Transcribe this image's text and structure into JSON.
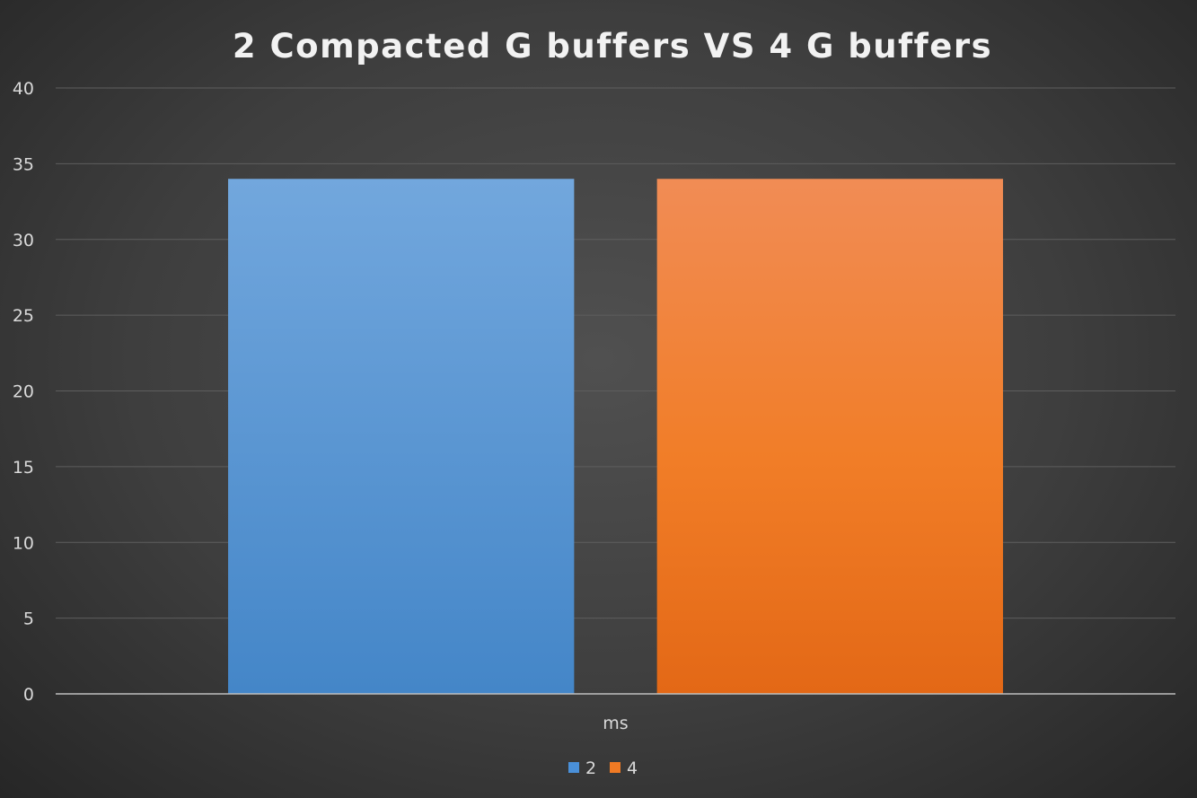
{
  "chart_data": {
    "type": "bar",
    "title": "2 Compacted G buffers VS 4 G buffers",
    "categories": [
      "ms"
    ],
    "series": [
      {
        "name": "2",
        "values": [
          34
        ],
        "color": "#4a90d9"
      },
      {
        "name": "4",
        "values": [
          34
        ],
        "color": "#f07a24"
      }
    ],
    "ylim": [
      0,
      40
    ],
    "yticks": [
      0,
      5,
      10,
      15,
      20,
      25,
      30,
      35,
      40
    ],
    "grid": true,
    "legend_position": "bottom"
  }
}
